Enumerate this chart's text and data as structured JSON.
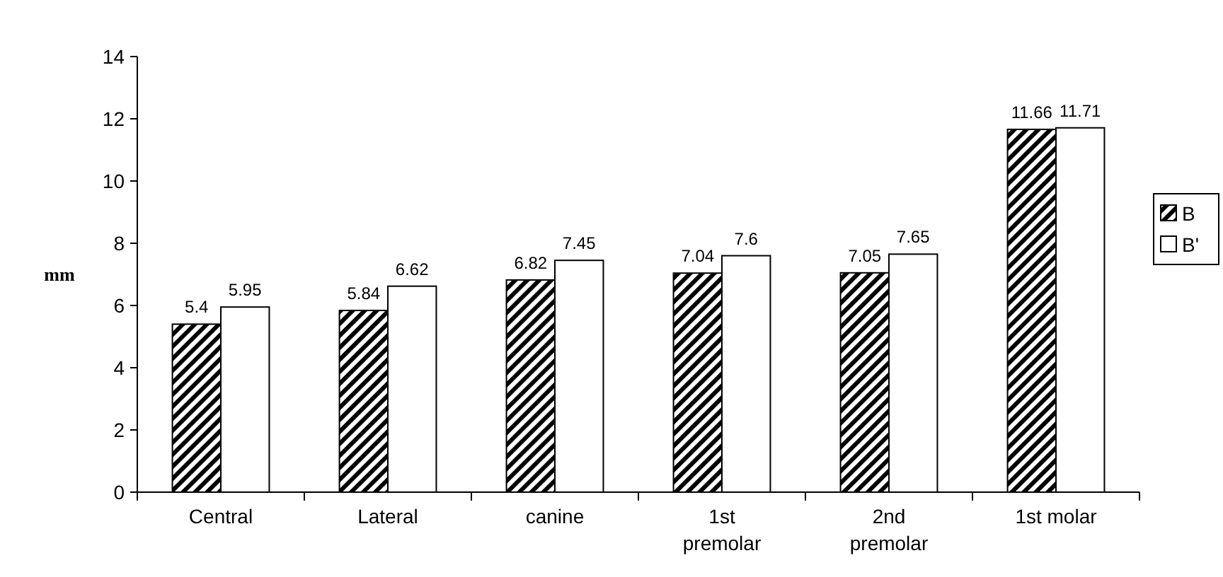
{
  "chart_data": {
    "type": "bar",
    "ylabel": "mm",
    "categories": [
      "Central",
      "Lateral",
      "canine",
      "1st\npremolar",
      "2nd\npremolar",
      "1st molar"
    ],
    "series": [
      {
        "name": "B",
        "color": "#000000",
        "values": [
          5.4,
          5.84,
          6.82,
          7.04,
          7.05,
          11.66
        ]
      },
      {
        "name": "B'",
        "color": "#ffffff",
        "values": [
          5.95,
          6.62,
          7.45,
          7.6,
          7.65,
          11.71
        ]
      }
    ],
    "ylim": [
      0,
      14
    ],
    "yticks": [
      0,
      2,
      4,
      6,
      8,
      10,
      12,
      14
    ],
    "data_labels": true,
    "legend": "right"
  }
}
